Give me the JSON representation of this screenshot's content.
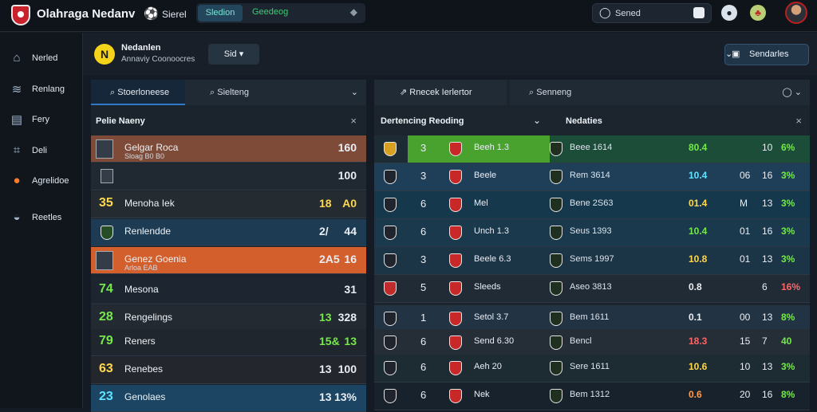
{
  "topbar": {
    "title": "Olahraga Nedanv",
    "nav_label": "Sierel",
    "tab_active": "Sledion",
    "tab_next": "Geedeog",
    "search_placeholder": "Sened"
  },
  "sidebar": {
    "items": [
      "Nerled",
      "Renlang",
      "Fery",
      "Deli",
      "Agrelidoe",
      "Reetles"
    ]
  },
  "header": {
    "team_name": "Nedanlen",
    "subtitle": "Annaviy Coonoocres",
    "season": "Sid",
    "settings_label": "Sendarles"
  },
  "left": {
    "tab_active": "Stoerloneese",
    "search_placeholder": "Sielteng",
    "title": "Pelie Naeny",
    "rows": [
      {
        "num": "",
        "name": "Gelgar Roca",
        "sub": "Sloag B0 B0",
        "v1": "",
        "v2": "160"
      },
      {
        "num": "",
        "name": "",
        "sub": "",
        "v1": "",
        "v2": "100"
      },
      {
        "num": "35",
        "name": "Menoha Iek",
        "sub": "",
        "v1": "18",
        "v2": "A0"
      },
      {
        "num": "",
        "name": "Renlendde",
        "sub": "",
        "v1": "2/",
        "v2": "44"
      },
      {
        "num": "",
        "name": "Genez Goenia",
        "sub": "Arloa EAB",
        "v1": "2A5",
        "v2": "16"
      },
      {
        "num": "74",
        "name": "Mesona",
        "sub": "",
        "v1": "",
        "v2": "31"
      },
      {
        "num": "28",
        "name": "Rengelings",
        "sub": "",
        "v1": "13",
        "v2": "328"
      },
      {
        "num": "79",
        "name": "Reners",
        "sub": "",
        "v1": "15&",
        "v2": "13"
      },
      {
        "num": "63",
        "name": "Renebes",
        "sub": "",
        "v1": "13",
        "v2": "100"
      },
      {
        "num": "23",
        "name": "Genolaes",
        "sub": "",
        "v1": "13",
        "v2": "13%"
      }
    ]
  },
  "right": {
    "tab_active": "Rnecek Ierlertor",
    "search_placeholder": "Senneng",
    "heading1": "Dertencing Reoding",
    "heading2": "Nedaties",
    "rows": [
      {
        "rank": "3",
        "name": "Beeh 1.3",
        "name2": "Beee 1614",
        "a": "80.4",
        "b": "",
        "c": "10",
        "d": "6%"
      },
      {
        "rank": "3",
        "name": "Beele",
        "name2": "Rem 3614",
        "a": "10.4",
        "b": "06",
        "c": "16",
        "d": "3%"
      },
      {
        "rank": "6",
        "name": "Mel",
        "name2": "Bene 2S63",
        "a": "01.4",
        "b": "M",
        "c": "13",
        "d": "3%"
      },
      {
        "rank": "6",
        "name": "Unch 1.3",
        "name2": "Seus 1393",
        "a": "10.4",
        "b": "01",
        "c": "16",
        "d": "3%"
      },
      {
        "rank": "3",
        "name": "Beele 6.3",
        "name2": "Sems 1997",
        "a": "10.8",
        "b": "01",
        "c": "13",
        "d": "3%"
      },
      {
        "rank": "5",
        "name": "Sleeds",
        "name2": "Aseo 3813",
        "a": "0.8",
        "b": "",
        "c": "6",
        "d": "16%"
      },
      {
        "rank": "1",
        "name": "Setol 3.7",
        "name2": "Bem 1611",
        "a": "0.1",
        "b": "00",
        "c": "13",
        "d": "8%"
      },
      {
        "rank": "6",
        "name": "Send 6.30",
        "name2": "Bencl",
        "a": "18.3",
        "b": "15",
        "c": "7",
        "d": "40"
      },
      {
        "rank": "6",
        "name": "Aeh 20",
        "name2": "Sere 1611",
        "a": "10.6",
        "b": "10",
        "c": "13",
        "d": "3%"
      },
      {
        "rank": "6",
        "name": "Nek",
        "name2": "Bem 1312",
        "a": "0.6",
        "b": "20",
        "c": "16",
        "d": "8%"
      }
    ]
  }
}
